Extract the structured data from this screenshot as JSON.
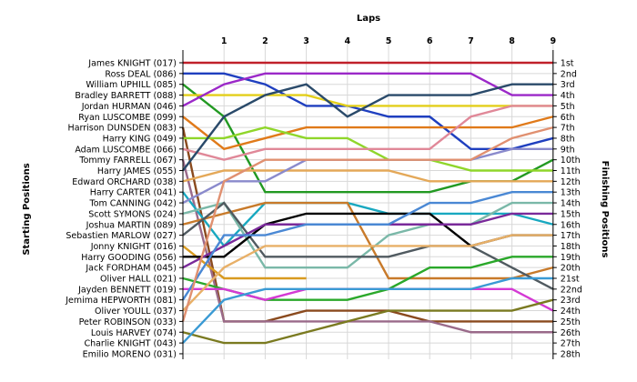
{
  "chart_data": {
    "type": "line",
    "xlabel": "Laps",
    "ylabel_left": "Starting Positions",
    "ylabel_right": "Finishing Positions",
    "laps": [
      1,
      2,
      3,
      4,
      5,
      6,
      7,
      8,
      9
    ],
    "finish_labels": [
      "1st",
      "2nd",
      "3rd",
      "4th",
      "5th",
      "6th",
      "7th",
      "8th",
      "9th",
      "10th",
      "11th",
      "12th",
      "13th",
      "14th",
      "15th",
      "16th",
      "17th",
      "18th",
      "19th",
      "20th",
      "21st",
      "22nd",
      "23rd",
      "24th",
      "25th",
      "26th",
      "27th",
      "28th"
    ],
    "grid": true,
    "series": [
      {
        "name": "James KNIGHT (017)",
        "color": "#c0202a",
        "positions": [
          1,
          1,
          1,
          1,
          1,
          1,
          1,
          1,
          1,
          1
        ]
      },
      {
        "name": "Ross DEAL (086)",
        "color": "#1f3fbf",
        "positions": [
          2,
          2,
          3,
          5,
          5,
          6,
          6,
          9,
          9,
          8
        ]
      },
      {
        "name": "William UPHILL (085)",
        "color": "#229922",
        "positions": [
          3,
          6,
          13,
          13,
          13,
          13,
          13,
          12,
          12,
          10
        ]
      },
      {
        "name": "Bradley BARRETT (088)",
        "color": "#e3cf1a",
        "positions": [
          4,
          4,
          4,
          4,
          5,
          5,
          5,
          5,
          5,
          5
        ]
      },
      {
        "name": "Jordan HURMAN (046)",
        "color": "#9b28c8",
        "positions": [
          5,
          3,
          2,
          2,
          2,
          2,
          2,
          2,
          4,
          4
        ]
      },
      {
        "name": "Ryan LUSCOMBE (099)",
        "color": "#e07a1a",
        "positions": [
          6,
          9,
          8,
          7,
          7,
          7,
          7,
          7,
          7,
          6
        ]
      },
      {
        "name": "Harrison DUNSDEN (083)",
        "color": "#8a4a1e",
        "positions": [
          7,
          25,
          25,
          24,
          24,
          24,
          25,
          25,
          25,
          25
        ]
      },
      {
        "name": "Harry KING (049)",
        "color": "#8fd62a",
        "positions": [
          8,
          8,
          7,
          8,
          8,
          10,
          10,
          11,
          11,
          11
        ]
      },
      {
        "name": "Adam LUSCOMBE (066)",
        "color": "#e08898",
        "positions": [
          9,
          10,
          9,
          9,
          9,
          9,
          9,
          6,
          5,
          5
        ]
      },
      {
        "name": "Tommy FARRELL (067)",
        "color": "#9a6a8a",
        "positions": [
          10,
          25,
          25,
          25,
          25,
          25,
          25,
          26,
          26,
          26
        ]
      },
      {
        "name": "Harry JAMES (055)",
        "color": "#2a4a6a",
        "positions": [
          11,
          6,
          4,
          3,
          6,
          4,
          4,
          4,
          3,
          3
        ]
      },
      {
        "name": "Edward ORCHARD (038)",
        "color": "#e4a858",
        "positions": [
          12,
          11,
          11,
          11,
          11,
          11,
          12,
          12,
          12,
          12
        ]
      },
      {
        "name": "Harry CARTER (041)",
        "color": "#18a8c0",
        "positions": [
          13,
          18,
          14,
          14,
          14,
          15,
          15,
          15,
          15,
          16
        ]
      },
      {
        "name": "Tom CANNING (042)",
        "color": "#8a8acc",
        "positions": [
          14,
          12,
          12,
          10,
          10,
          10,
          10,
          10,
          9,
          9
        ]
      },
      {
        "name": "Scott SYMONS (024)",
        "color": "#7ab8a8",
        "positions": [
          15,
          14,
          20,
          20,
          20,
          17,
          16,
          16,
          14,
          14
        ]
      },
      {
        "name": "Joshua MARTIN (089)",
        "color": "#c87a2a",
        "positions": [
          16,
          15,
          14,
          14,
          14,
          21,
          21,
          21,
          21,
          20
        ]
      },
      {
        "name": "Sebastien MARLOW (027)",
        "color": "#505a60",
        "positions": [
          17,
          14,
          19,
          19,
          19,
          19,
          18,
          18,
          20,
          22
        ]
      },
      {
        "name": "Jonny KNIGHT (016)",
        "color": "#d89a20",
        "positions": [
          18,
          21,
          21,
          21
        ]
      },
      {
        "name": "Harry GOODING (056)",
        "color": "#000000",
        "positions": [
          19,
          19,
          16,
          15,
          15,
          15,
          15,
          18,
          17,
          17
        ]
      },
      {
        "name": "Jack FORDHAM (045)",
        "color": "#7a2a9a",
        "positions": [
          20,
          18,
          16,
          16,
          16,
          16,
          16,
          16,
          15,
          15
        ]
      },
      {
        "name": "Oliver HALL (021)",
        "color": "#2aa82a",
        "positions": [
          21,
          22,
          23,
          23,
          23,
          22,
          20,
          20,
          19,
          19
        ]
      },
      {
        "name": "Jayden BENNETT (019)",
        "color": "#d43ad4",
        "positions": [
          22,
          22,
          23,
          22,
          22,
          22,
          22,
          22,
          22,
          24
        ]
      },
      {
        "name": "Jemima HEPWORTH (081)",
        "color": "#4a88d4",
        "positions": [
          23,
          17,
          17,
          16,
          16,
          16,
          14,
          14,
          13,
          13
        ]
      },
      {
        "name": "Oliver YOULL (037)",
        "color": "#e8b068",
        "positions": [
          24,
          20,
          18,
          18,
          18,
          18,
          18,
          18,
          17,
          17
        ]
      },
      {
        "name": "Peter ROBINSON (033)",
        "color": "#e09070",
        "positions": [
          25,
          12,
          10,
          10,
          10,
          10,
          10,
          10,
          8,
          7
        ]
      },
      {
        "name": "Louis HARVEY (074)",
        "color": "#7a7a20",
        "positions": [
          26,
          27,
          27,
          26,
          25,
          24,
          24,
          24,
          24,
          23
        ]
      },
      {
        "name": "Charlie KNIGHT (043)",
        "color": "#3a9ad4",
        "positions": [
          27,
          23,
          22,
          22,
          22,
          22,
          22,
          22,
          21,
          21
        ]
      },
      {
        "name": "Emilio MORENO (031)",
        "color": "#5a8a5a",
        "positions": []
      }
    ]
  }
}
